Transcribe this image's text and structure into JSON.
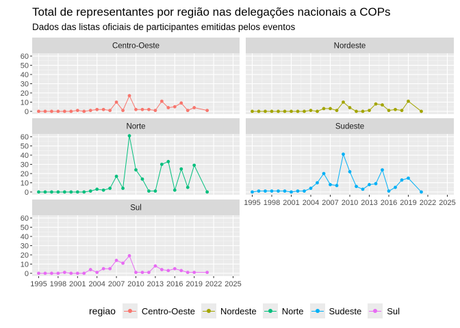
{
  "chart_data": {
    "type": "line",
    "title": "Total de representantes por região nas delegações nacionais a COPs",
    "subtitle": "Dados das listas oficiais de participantes emitidas pelos eventos",
    "xlabel": "",
    "ylabel": "",
    "xlim": [
      1994,
      2026
    ],
    "ylim": [
      -3,
      63
    ],
    "x_ticks": [
      1995,
      1998,
      2001,
      2004,
      2007,
      2010,
      2013,
      2016,
      2019,
      2022,
      2025
    ],
    "y_ticks": [
      0,
      10,
      20,
      30,
      40,
      50,
      60
    ],
    "grid": true,
    "legend_position": "bottom",
    "legend_title": "regiao",
    "x": [
      1995,
      1996,
      1997,
      1998,
      1999,
      2000,
      2001,
      2002,
      2003,
      2004,
      2005,
      2006,
      2007,
      2008,
      2009,
      2010,
      2011,
      2012,
      2013,
      2014,
      2015,
      2016,
      2017,
      2018,
      2019,
      2021
    ],
    "series": [
      {
        "name": "Centro-Oeste",
        "color": "#F8766D",
        "values": [
          0,
          0,
          0,
          0,
          0,
          0,
          1,
          0,
          1,
          2,
          2,
          1,
          10,
          1,
          17,
          2,
          2,
          2,
          1,
          11,
          4,
          5,
          9,
          1,
          4,
          1
        ]
      },
      {
        "name": "Nordeste",
        "color": "#A3A500",
        "values": [
          0,
          0,
          0,
          0,
          0,
          0,
          0,
          0,
          0,
          1,
          0,
          3,
          3,
          1,
          10,
          4,
          0,
          0,
          1,
          8,
          7,
          1,
          2,
          1,
          11,
          0
        ]
      },
      {
        "name": "Norte",
        "color": "#00BF7D",
        "values": [
          0,
          0,
          0,
          0,
          0,
          0,
          0,
          0,
          1,
          3,
          2,
          4,
          17,
          4,
          61,
          24,
          14,
          1,
          1,
          30,
          33,
          2,
          25,
          5,
          29,
          0
        ]
      },
      {
        "name": "Sudeste",
        "color": "#00B0F6",
        "values": [
          0,
          1,
          1,
          1,
          1,
          1,
          0,
          1,
          1,
          4,
          10,
          20,
          8,
          7,
          41,
          22,
          6,
          3,
          8,
          9,
          24,
          1,
          5,
          13,
          15,
          0
        ]
      },
      {
        "name": "Sul",
        "color": "#E76BF3",
        "values": [
          0,
          0,
          0,
          0,
          1,
          0,
          0,
          0,
          4,
          1,
          5,
          5,
          14,
          11,
          19,
          1,
          1,
          1,
          8,
          4,
          3,
          5,
          3,
          1,
          1,
          1
        ]
      }
    ]
  }
}
